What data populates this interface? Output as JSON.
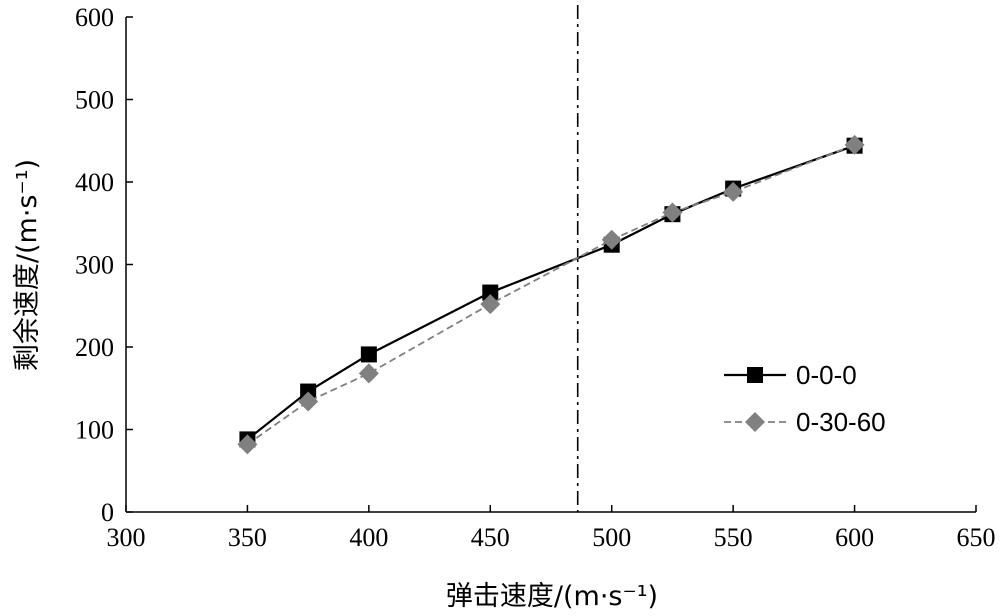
{
  "chart_data": {
    "type": "line",
    "title": "",
    "xlabel": "弹击速度/(m·s⁻¹)",
    "ylabel": "剩余速度/(m·s⁻¹)",
    "xlim": [
      300,
      650
    ],
    "ylim": [
      0,
      600
    ],
    "xticks": [
      300,
      350,
      400,
      450,
      500,
      550,
      600,
      650
    ],
    "yticks": [
      0,
      100,
      200,
      300,
      400,
      500,
      600
    ],
    "grid": false,
    "legend_position": "right",
    "reference_line": {
      "axis": "x",
      "value": 486,
      "style": "dash-dot",
      "color": "#000000"
    },
    "series": [
      {
        "name": "0-0-0",
        "marker": "square",
        "line_style": "solid",
        "color": "#000000",
        "points": [
          {
            "x": 350,
            "y": 88
          },
          {
            "x": 375,
            "y": 146
          },
          {
            "x": 400,
            "y": 191
          },
          {
            "x": 450,
            "y": 266
          },
          {
            "x": 500,
            "y": 324
          },
          {
            "x": 525,
            "y": 361
          },
          {
            "x": 550,
            "y": 392
          },
          {
            "x": 600,
            "y": 444
          }
        ]
      },
      {
        "name": "0-30-60",
        "marker": "diamond",
        "line_style": "dashed",
        "color": "#808080",
        "points": [
          {
            "x": 350,
            "y": 82
          },
          {
            "x": 375,
            "y": 134
          },
          {
            "x": 400,
            "y": 168
          },
          {
            "x": 450,
            "y": 252
          },
          {
            "x": 500,
            "y": 330
          },
          {
            "x": 525,
            "y": 363
          },
          {
            "x": 550,
            "y": 388
          },
          {
            "x": 600,
            "y": 445
          }
        ]
      }
    ]
  }
}
